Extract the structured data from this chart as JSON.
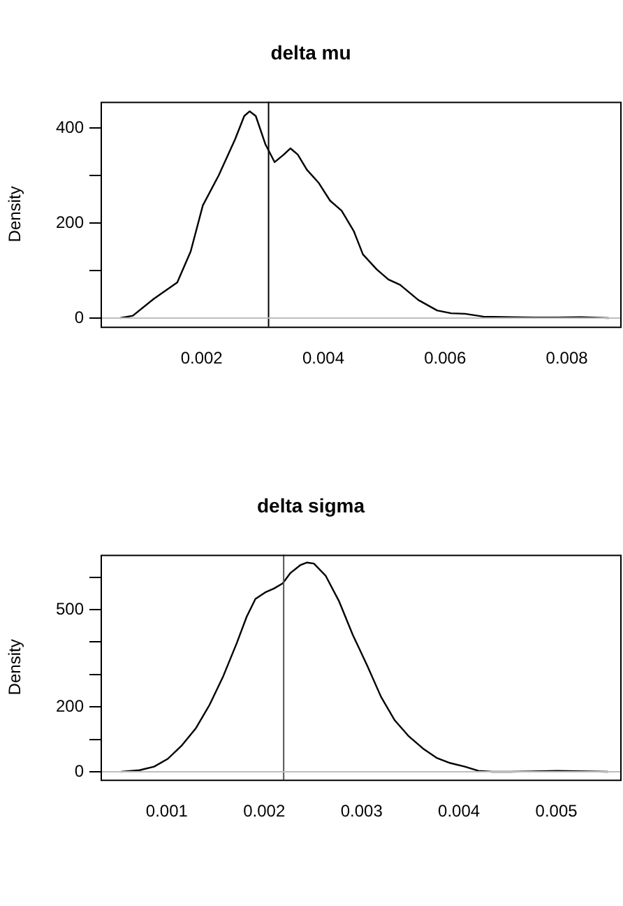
{
  "chart_data": [
    {
      "type": "line",
      "title": "delta mu",
      "ylabel": "Density",
      "marker": "none",
      "grid": false,
      "legend": false,
      "xlim": [
        0.00034,
        0.0089
      ],
      "xticks": [
        0.002,
        0.004,
        0.006,
        0.008
      ],
      "ylim": [
        -18,
        455
      ],
      "yticks": [
        0,
        {
          "value": 100,
          "label": null
        },
        200,
        {
          "value": 300,
          "label": null
        },
        400
      ],
      "series": [
        {
          "color": "#000000",
          "x": [
            0.00066,
            0.00087,
            0.00121,
            0.0016,
            0.00182,
            0.00202,
            0.00228,
            0.00255,
            0.0027,
            0.00279,
            0.00289,
            0.00305,
            0.0032,
            0.00335,
            0.00346,
            0.00358,
            0.00373,
            0.00392,
            0.00411,
            0.0043,
            0.0045,
            0.00465,
            0.00488,
            0.00507,
            0.00526,
            0.00556,
            0.00587,
            0.0061,
            0.00633,
            0.00663,
            0.00709,
            0.00747,
            0.00785,
            0.00823,
            0.00869
          ],
          "values": [
            0,
            5,
            40,
            75,
            140,
            237,
            300,
            376,
            425,
            435,
            425,
            365,
            328,
            344,
            357,
            344,
            312,
            285,
            247,
            226,
            183,
            134,
            102,
            81,
            70,
            38,
            16,
            10,
            9,
            3,
            2,
            1,
            1,
            2,
            0
          ]
        }
      ],
      "ref_lines": [
        {
          "axis": "x",
          "value": 0.0031,
          "color": "#000000"
        },
        {
          "axis": "y",
          "value": 0,
          "color": "#bebebe"
        }
      ]
    },
    {
      "type": "line",
      "title": "delta sigma",
      "ylabel": "Density",
      "marker": "none",
      "grid": false,
      "legend": false,
      "xlim": [
        0.00032,
        0.00567
      ],
      "xticks": [
        0.001,
        0.002,
        0.003,
        0.004,
        0.005
      ],
      "ylim": [
        -24,
        669
      ],
      "yticks": [
        0,
        {
          "value": 100,
          "label": null
        },
        200,
        {
          "value": 300,
          "label": null
        },
        {
          "value": 400,
          "label": null
        },
        500,
        {
          "value": 600,
          "label": null
        }
      ],
      "series": [
        {
          "color": "#000000",
          "x": [
            0.00053,
            0.00072,
            0.00087,
            0.00101,
            0.00115,
            0.0013,
            0.00144,
            0.00158,
            0.00172,
            0.00182,
            0.00191,
            0.00201,
            0.0021,
            0.00219,
            0.00227,
            0.00237,
            0.00244,
            0.00251,
            0.00263,
            0.00277,
            0.00291,
            0.00306,
            0.0032,
            0.00334,
            0.00348,
            0.00363,
            0.00377,
            0.00391,
            0.00406,
            0.0042,
            0.00434,
            0.00453,
            0.00501,
            0.00553
          ],
          "values": [
            0,
            5,
            16,
            40,
            80,
            135,
            207,
            295,
            398,
            478,
            533,
            553,
            565,
            581,
            613,
            637,
            645,
            642,
            605,
            525,
            422,
            326,
            231,
            159,
            111,
            72,
            43,
            27,
            16,
            3,
            0,
            0,
            3,
            0
          ]
        }
      ],
      "ref_lines": [
        {
          "axis": "x",
          "value": 0.0022,
          "color": "#555555"
        },
        {
          "axis": "y",
          "value": 0,
          "color": "#bebebe"
        }
      ]
    }
  ]
}
